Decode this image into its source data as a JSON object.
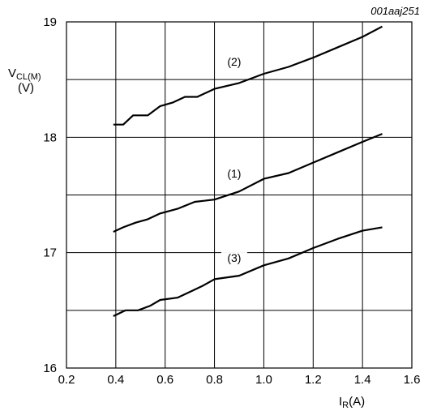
{
  "figure_ref": "001aaj251",
  "chart_data": {
    "type": "line",
    "ylabel": {
      "main": "V",
      "sub": "CL(M)",
      "unit": "(V)"
    },
    "xlabel": {
      "main": "I",
      "sub": "R",
      "unit": "(A)"
    },
    "xlim": [
      0.2,
      1.6
    ],
    "ylim": [
      16,
      19
    ],
    "xticks": [
      0.2,
      0.4,
      0.6,
      0.8,
      1.0,
      1.2,
      1.4,
      1.6
    ],
    "xtick_labels": [
      "0.2",
      "0.4",
      "0.6",
      "0.8",
      "1.0",
      "1.2",
      "1.4",
      "1.6"
    ],
    "yticks": [
      16,
      17,
      18,
      19
    ],
    "ytick_labels": [
      "16",
      "17",
      "18",
      "19"
    ],
    "minor_y_gridlines": [
      16.5,
      17.5,
      18.5
    ],
    "grid": true,
    "series": [
      {
        "name": "(2)",
        "label_at": [
          0.88,
          18.62
        ],
        "points": [
          [
            0.39,
            18.11
          ],
          [
            0.43,
            18.11
          ],
          [
            0.47,
            18.19
          ],
          [
            0.53,
            18.19
          ],
          [
            0.58,
            18.27
          ],
          [
            0.63,
            18.3
          ],
          [
            0.68,
            18.35
          ],
          [
            0.73,
            18.35
          ],
          [
            0.8,
            18.42
          ],
          [
            0.9,
            18.47
          ],
          [
            1.0,
            18.55
          ],
          [
            1.1,
            18.61
          ],
          [
            1.2,
            18.69
          ],
          [
            1.3,
            18.78
          ],
          [
            1.4,
            18.87
          ],
          [
            1.48,
            18.96
          ]
        ]
      },
      {
        "name": "(1)",
        "label_at": [
          0.88,
          17.65
        ],
        "points": [
          [
            0.39,
            17.18
          ],
          [
            0.43,
            17.22
          ],
          [
            0.48,
            17.26
          ],
          [
            0.53,
            17.29
          ],
          [
            0.58,
            17.34
          ],
          [
            0.65,
            17.38
          ],
          [
            0.72,
            17.44
          ],
          [
            0.8,
            17.46
          ],
          [
            0.9,
            17.53
          ],
          [
            1.0,
            17.64
          ],
          [
            1.1,
            17.69
          ],
          [
            1.2,
            17.78
          ],
          [
            1.3,
            17.87
          ],
          [
            1.4,
            17.96
          ],
          [
            1.48,
            18.03
          ]
        ]
      },
      {
        "name": "(3)",
        "label_at": [
          0.88,
          16.92
        ],
        "points": [
          [
            0.39,
            16.45
          ],
          [
            0.44,
            16.5
          ],
          [
            0.49,
            16.5
          ],
          [
            0.54,
            16.54
          ],
          [
            0.58,
            16.59
          ],
          [
            0.65,
            16.61
          ],
          [
            0.7,
            16.66
          ],
          [
            0.75,
            16.71
          ],
          [
            0.8,
            16.77
          ],
          [
            0.9,
            16.8
          ],
          [
            1.0,
            16.89
          ],
          [
            1.1,
            16.95
          ],
          [
            1.2,
            17.04
          ],
          [
            1.3,
            17.12
          ],
          [
            1.4,
            17.19
          ],
          [
            1.48,
            17.22
          ]
        ]
      }
    ]
  }
}
